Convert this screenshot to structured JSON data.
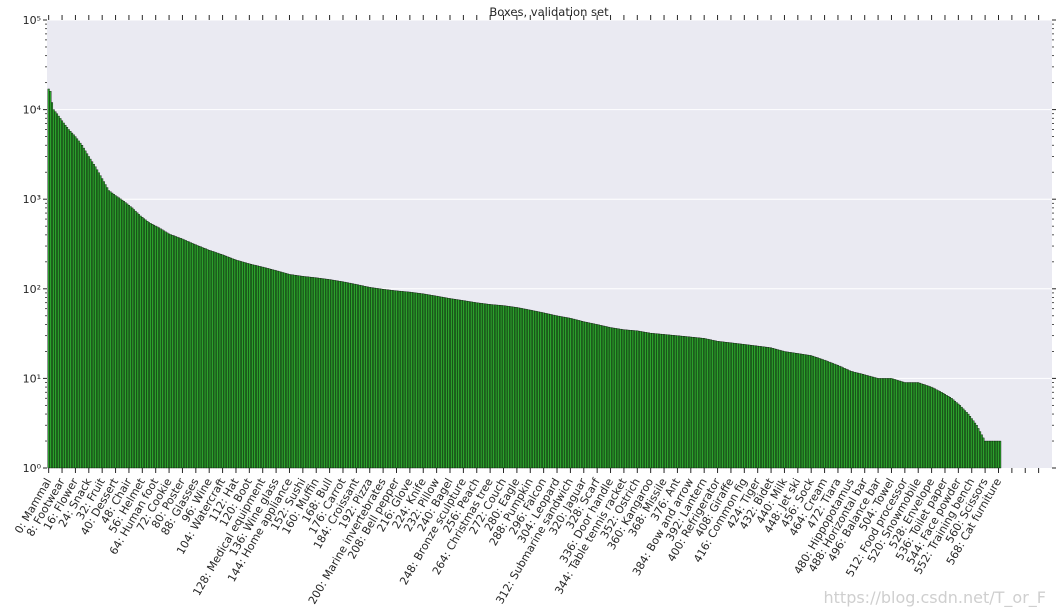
{
  "chart_data": {
    "type": "bar",
    "title": "Boxes, validation set",
    "yscale": "log",
    "ylim": [
      1,
      100000
    ],
    "ytick_values": [
      1,
      10,
      100,
      1000,
      10000,
      100000
    ],
    "ytick_labels": [
      "10⁰",
      "10¹",
      "10²",
      "10³",
      "10⁴",
      "10⁵"
    ],
    "xlim": [
      -1,
      600
    ],
    "num_classes": 570,
    "bar_color": "#2ca02c",
    "bar_edge_color": "#000000",
    "grid": true,
    "xtick_positions": [
      0,
      8,
      16,
      24,
      32,
      40,
      48,
      56,
      64,
      72,
      80,
      88,
      96,
      104,
      112,
      120,
      128,
      136,
      144,
      152,
      160,
      168,
      176,
      184,
      192,
      200,
      208,
      216,
      224,
      232,
      240,
      248,
      256,
      264,
      272,
      280,
      288,
      296,
      304,
      312,
      320,
      328,
      336,
      344,
      352,
      360,
      368,
      376,
      384,
      392,
      400,
      408,
      416,
      424,
      432,
      440,
      448,
      456,
      464,
      472,
      480,
      488,
      496,
      504,
      512,
      520,
      528,
      536,
      544,
      552,
      560,
      568,
      576,
      584,
      592
    ],
    "xtick_labels": [
      "0: Mammal",
      "8: Footwear",
      "16: Flower",
      "24: Snack",
      "32: Fruit",
      "40: Dessert",
      "48: Chair",
      "56: Helmet",
      "64: Human foot",
      "72: Cookie",
      "80: Poster",
      "88: Glasses",
      "96: Wine",
      "104: Watercraft",
      "112: Hat",
      "120: Boot",
      "128: Medical equipment",
      "136: Wine glass",
      "144: Home appliance",
      "152: Sushi",
      "160: Muffin",
      "168: Bull",
      "176: Carrot",
      "184: Croissant",
      "192: Pizza",
      "200: Marine invertebrates",
      "208: Bell pepper",
      "216: Glove",
      "224: Knife",
      "232: Pillow",
      "240: Bagel",
      "248: Bronze sculpture",
      "256: Peach",
      "264: Christmas tree",
      "272: Couch",
      "280: Eagle",
      "288: Pumpkin",
      "296: Falcon",
      "304: Leopard",
      "312: Submarine sandwich",
      "320: Jaguar",
      "328: Scarf",
      "336: Door handle",
      "344: Table tennis racket",
      "352: Ostrich",
      "360: Kangaroo",
      "368: Missile",
      "376: Ant",
      "384: Bow and arrow",
      "392: Lantern",
      "400: Refrigerator",
      "408: Giraffe",
      "416: Common fig",
      "424: Tiger",
      "432: Bidet",
      "440: Milk",
      "448: Jet ski",
      "456: Sock",
      "464: Cream",
      "472: Tiara",
      "480: Hippopotamus",
      "488: Horizontal bar",
      "496: Balance bar",
      "504: Towel",
      "512: Food processor",
      "520: Snowmobile",
      "528: Envelope",
      "536: Toilet paper",
      "544: Face powder",
      "552: Training bench",
      "560: Scissors",
      "568: Cat furniture",
      "",
      "",
      ""
    ],
    "profile_x": [
      0,
      1,
      2,
      3,
      5,
      8,
      12,
      16,
      20,
      24,
      28,
      32,
      36,
      40,
      45,
      50,
      55,
      60,
      66,
      72,
      80,
      88,
      96,
      104,
      112,
      120,
      128,
      136,
      144,
      152,
      160,
      168,
      176,
      184,
      192,
      200,
      208,
      216,
      224,
      232,
      240,
      248,
      256,
      264,
      272,
      280,
      288,
      296,
      304,
      312,
      320,
      328,
      336,
      344,
      352,
      360,
      368,
      376,
      384,
      392,
      400,
      408,
      416,
      424,
      432,
      440,
      448,
      456,
      464,
      472,
      480,
      488,
      496,
      504,
      512,
      520,
      528,
      534,
      540,
      545,
      550,
      555,
      560,
      569
    ],
    "profile_y": [
      17000,
      16000,
      12000,
      10000,
      9000,
      7500,
      6000,
      5000,
      4000,
      3000,
      2300,
      1700,
      1250,
      1100,
      950,
      800,
      650,
      550,
      480,
      410,
      360,
      310,
      270,
      240,
      210,
      190,
      175,
      160,
      145,
      138,
      133,
      127,
      120,
      112,
      104,
      99,
      95,
      92,
      88,
      83,
      78,
      74,
      70,
      67,
      65,
      62,
      58,
      54,
      50,
      47,
      43,
      40,
      37,
      35,
      34,
      32,
      31,
      30,
      29,
      28,
      26,
      25,
      24,
      23,
      22,
      20,
      19,
      18,
      16,
      14,
      12,
      11,
      10,
      10,
      9,
      9,
      8,
      7,
      6,
      5,
      4,
      3,
      2,
      2
    ]
  },
  "watermark": "https://blog.csdn.net/T_or_F"
}
